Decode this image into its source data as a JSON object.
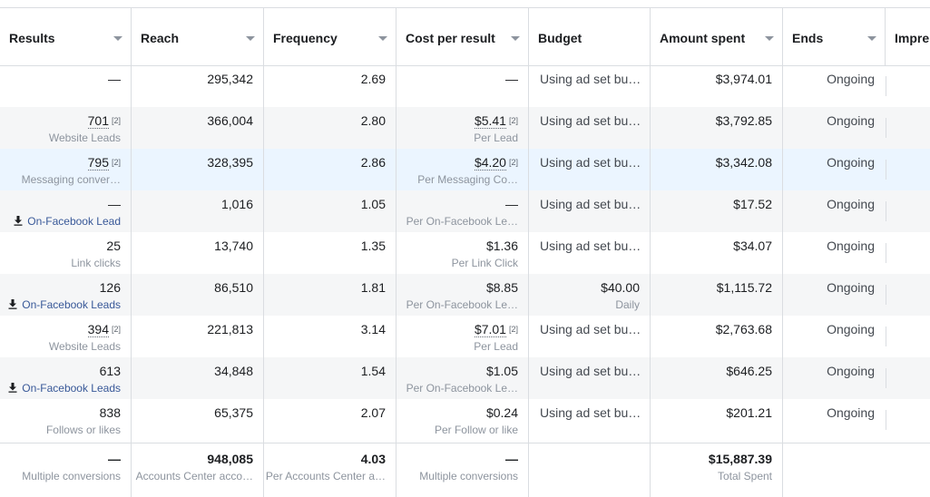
{
  "columns": [
    {
      "label": "Results",
      "dropdown": true
    },
    {
      "label": "Reach",
      "dropdown": true
    },
    {
      "label": "Frequency",
      "dropdown": true
    },
    {
      "label": "Cost per result",
      "dropdown": true
    },
    {
      "label": "Budget",
      "dropdown": false
    },
    {
      "label": "Amount spent",
      "dropdown": true
    },
    {
      "label": "Ends",
      "dropdown": true
    },
    {
      "label": "Impre",
      "dropdown": false
    }
  ],
  "rows": [
    {
      "results": "—",
      "results_sub": "",
      "results_sup": "",
      "results_link": false,
      "reach": "295,342",
      "frequency": "2.69",
      "cpr": "—",
      "cpr_sub": "",
      "cpr_sup": "",
      "budget": "Using ad set bu…",
      "budget_sub": "",
      "spent": "$3,974.01",
      "ends": "Ongoing",
      "shade": "none"
    },
    {
      "results": "701",
      "results_sub": "Website Leads",
      "results_sup": "[2]",
      "results_link": false,
      "reach": "366,004",
      "frequency": "2.80",
      "cpr": "$5.41",
      "cpr_sub": "Per Lead",
      "cpr_sup": "[2]",
      "budget": "Using ad set bu…",
      "budget_sub": "",
      "spent": "$3,792.85",
      "ends": "Ongoing",
      "shade": "gray"
    },
    {
      "results": "795",
      "results_sub": "Messaging conver…",
      "results_sup": "[2]",
      "results_link": false,
      "reach": "328,395",
      "frequency": "2.86",
      "cpr": "$4.20",
      "cpr_sub": "Per Messaging Co…",
      "cpr_sup": "[2]",
      "budget": "Using ad set bu…",
      "budget_sub": "",
      "spent": "$3,342.08",
      "ends": "Ongoing",
      "shade": "blue"
    },
    {
      "results": "—",
      "results_sub": "On-Facebook Lead",
      "results_sup": "",
      "results_link": true,
      "reach": "1,016",
      "frequency": "1.05",
      "cpr": "—",
      "cpr_sub": "Per On-Facebook Le…",
      "cpr_sup": "",
      "budget": "Using ad set bu…",
      "budget_sub": "",
      "spent": "$17.52",
      "ends": "Ongoing",
      "shade": "gray"
    },
    {
      "results": "25",
      "results_sub": "Link clicks",
      "results_sup": "",
      "results_link": false,
      "reach": "13,740",
      "frequency": "1.35",
      "cpr": "$1.36",
      "cpr_sub": "Per Link Click",
      "cpr_sup": "",
      "budget": "Using ad set bu…",
      "budget_sub": "",
      "spent": "$34.07",
      "ends": "Ongoing",
      "shade": "none"
    },
    {
      "results": "126",
      "results_sub": "On-Facebook Leads",
      "results_sup": "",
      "results_link": true,
      "reach": "86,510",
      "frequency": "1.81",
      "cpr": "$8.85",
      "cpr_sub": "Per On-Facebook Le…",
      "cpr_sup": "",
      "budget": "$40.00",
      "budget_sub": "Daily",
      "spent": "$1,115.72",
      "ends": "Ongoing",
      "shade": "gray"
    },
    {
      "results": "394",
      "results_sub": "Website Leads",
      "results_sup": "[2]",
      "results_link": false,
      "reach": "221,813",
      "frequency": "3.14",
      "cpr": "$7.01",
      "cpr_sub": "Per Lead",
      "cpr_sup": "[2]",
      "budget": "Using ad set bu…",
      "budget_sub": "",
      "spent": "$2,763.68",
      "ends": "Ongoing",
      "shade": "none"
    },
    {
      "results": "613",
      "results_sub": "On-Facebook Leads",
      "results_sup": "",
      "results_link": true,
      "reach": "34,848",
      "frequency": "1.54",
      "cpr": "$1.05",
      "cpr_sub": "Per On-Facebook Le…",
      "cpr_sup": "",
      "budget": "Using ad set bu…",
      "budget_sub": "",
      "spent": "$646.25",
      "ends": "Ongoing",
      "shade": "gray"
    },
    {
      "results": "838",
      "results_sub": "Follows or likes",
      "results_sup": "",
      "results_link": false,
      "reach": "65,375",
      "frequency": "2.07",
      "cpr": "$0.24",
      "cpr_sub": "Per Follow or like",
      "cpr_sup": "",
      "budget": "Using ad set bu…",
      "budget_sub": "",
      "spent": "$201.21",
      "ends": "Ongoing",
      "shade": "none"
    }
  ],
  "totals": {
    "results": "—",
    "results_sub": "Multiple conversions",
    "reach": "948,085",
    "reach_sub": "Accounts Center acco…",
    "frequency": "4.03",
    "frequency_sub": "Per Accounts Center a…",
    "cpr": "—",
    "cpr_sub": "Multiple conversions",
    "spent": "$15,887.39",
    "spent_sub": "Total Spent"
  },
  "colors": {
    "link": "#385898",
    "row_gray": "#f5f6f7",
    "row_highlight": "#ebf5ff",
    "border": "#dadde1"
  },
  "icons": {
    "column_sort": "chevron-down-icon",
    "lead_form": "download-icon"
  }
}
